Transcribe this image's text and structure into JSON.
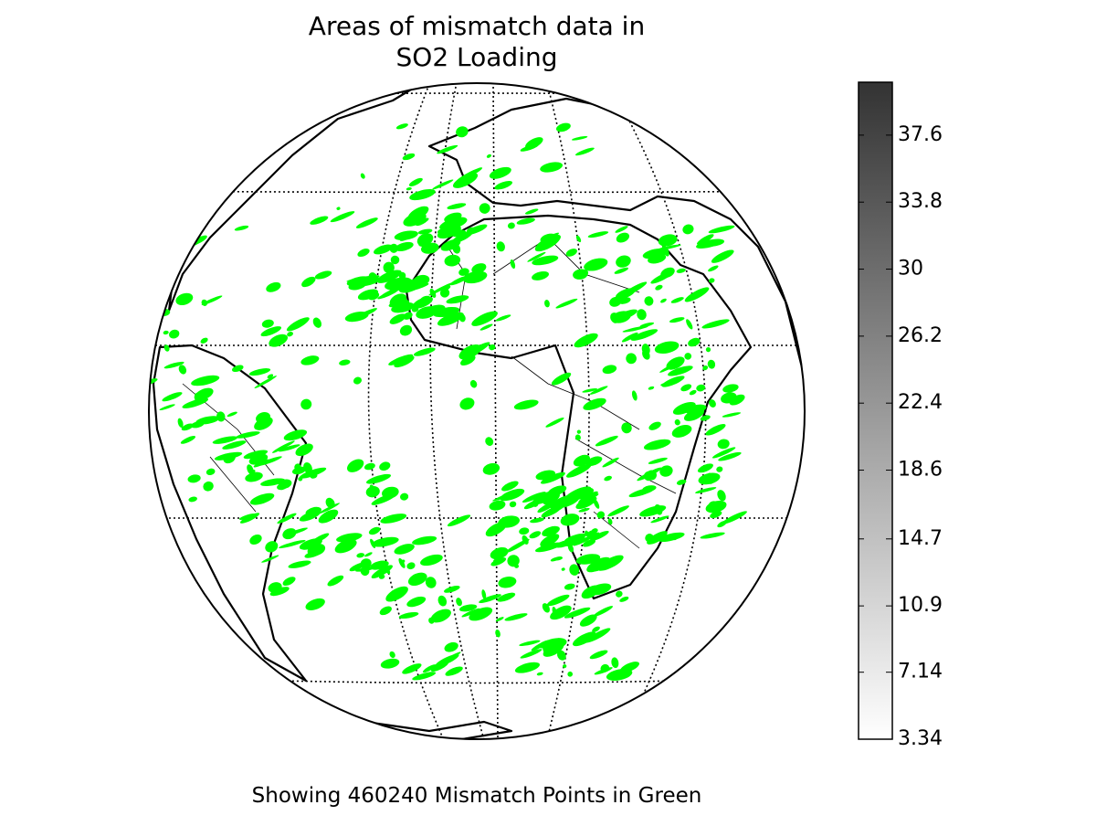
{
  "title": "Areas of mismatch data in\nSO2 Loading",
  "caption": "Showing 460240 Mismatch Points in Green",
  "mismatch_color": "#00ff00",
  "colorbar": {
    "lim": [
      3.34,
      40.6
    ],
    "ticks": [
      3.34,
      7.14,
      10.9,
      14.7,
      18.6,
      22.4,
      26.2,
      30,
      33.8,
      37.6
    ],
    "color_low": "#ffffff",
    "color_high": "#333333"
  }
}
